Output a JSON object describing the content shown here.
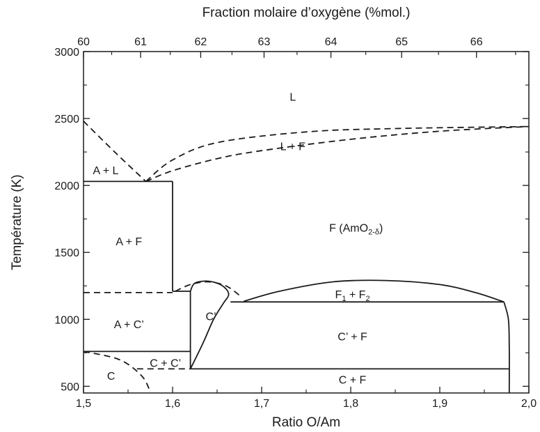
{
  "chart_data": {
    "type": "phase-diagram",
    "xlabel_bottom": "Ratio O/Am",
    "xlabel_top": "Fraction molaire d’oxygène (%mol.)",
    "ylabel": "Température (K)",
    "xlim": [
      1.5,
      2.0
    ],
    "ylim": [
      450,
      3000
    ],
    "x_ticks": [
      {
        "value": 1.5,
        "label": "1,5"
      },
      {
        "value": 1.6,
        "label": "1,6"
      },
      {
        "value": 1.7,
        "label": "1,7"
      },
      {
        "value": 1.8,
        "label": "1,8"
      },
      {
        "value": 1.9,
        "label": "1,9"
      },
      {
        "value": 2.0,
        "label": "2,0"
      }
    ],
    "x_minor_ticks": [
      1.55,
      1.65,
      1.75,
      1.85,
      1.95
    ],
    "top_ticks": [
      {
        "percent": 60,
        "label": "60"
      },
      {
        "percent": 61,
        "label": "61"
      },
      {
        "percent": 62,
        "label": "62"
      },
      {
        "percent": 63,
        "label": "63"
      },
      {
        "percent": 64,
        "label": "64"
      },
      {
        "percent": 65,
        "label": "65"
      },
      {
        "percent": 66,
        "label": "66"
      }
    ],
    "y_ticks": [
      {
        "value": 500,
        "label": "500"
      },
      {
        "value": 1000,
        "label": "1000"
      },
      {
        "value": 1500,
        "label": "1500"
      },
      {
        "value": 2000,
        "label": "2000"
      },
      {
        "value": 2500,
        "label": "2500"
      },
      {
        "value": 3000,
        "label": "3000"
      }
    ],
    "y_minor_ticks": [
      750,
      1250,
      1750,
      2250,
      2750
    ],
    "regions": [
      {
        "name": "region-L",
        "text": "L",
        "x": 1.735,
        "y": 2660
      },
      {
        "name": "region-L-F",
        "text": "L + F",
        "x": 1.735,
        "y": 2290
      },
      {
        "name": "region-A-L",
        "text": "A + L",
        "x": 1.525,
        "y": 2110
      },
      {
        "name": "region-A-F",
        "text": "A + F",
        "x": 1.551,
        "y": 1580
      },
      {
        "name": "region-F",
        "text": "F (AmO",
        "sub": "2-δ",
        "tail": ")",
        "x": 1.806,
        "y": 1680
      },
      {
        "name": "region-A-C-prime",
        "text": "A + C’",
        "x": 1.551,
        "y": 960
      },
      {
        "name": "region-C-prime",
        "text": "C’",
        "x": 1.643,
        "y": 1020
      },
      {
        "name": "region-F1-F2",
        "text": "F",
        "sub": "1",
        "tail": " + F",
        "sub2": "2",
        "x": 1.802,
        "y": 1185
      },
      {
        "name": "region-C-prime-F",
        "text": "C’ + F",
        "x": 1.802,
        "y": 870
      },
      {
        "name": "region-C-C-prime",
        "text": "C + C’",
        "x": 1.592,
        "y": 670
      },
      {
        "name": "region-C",
        "text": "C",
        "x": 1.531,
        "y": 575
      },
      {
        "name": "region-C-F",
        "text": "C + F",
        "x": 1.802,
        "y": 545
      }
    ],
    "boundaries": [
      {
        "name": "liquidus-left",
        "style": "dashed",
        "points": [
          [
            1.5,
            2480
          ],
          [
            1.535,
            2250
          ],
          [
            1.57,
            2030
          ]
        ]
      },
      {
        "name": "liquidus-right",
        "style": "dashed",
        "points": [
          [
            1.57,
            2030
          ],
          [
            1.6,
            2190
          ],
          [
            1.65,
            2320
          ],
          [
            1.75,
            2400
          ],
          [
            1.85,
            2425
          ],
          [
            2.0,
            2440
          ]
        ]
      },
      {
        "name": "solidus-f",
        "style": "dashed",
        "points": [
          [
            1.57,
            2030
          ],
          [
            1.6,
            2110
          ],
          [
            1.65,
            2200
          ],
          [
            1.7,
            2260
          ],
          [
            1.8,
            2345
          ],
          [
            1.9,
            2405
          ],
          [
            2.0,
            2440
          ]
        ]
      },
      {
        "name": "eutectic-line",
        "style": "solid",
        "points": [
          [
            1.5,
            2030
          ],
          [
            1.6,
            2030
          ]
        ]
      },
      {
        "name": "a-f-boundary",
        "style": "solid",
        "points": [
          [
            1.6,
            2030
          ],
          [
            1.6,
            1210
          ]
        ]
      },
      {
        "name": "dashed-1200",
        "style": "dashed",
        "points": [
          [
            1.5,
            1200
          ],
          [
            1.6,
            1200
          ]
        ]
      },
      {
        "name": "solid-1200",
        "style": "solid",
        "points": [
          [
            1.6,
            1210
          ],
          [
            1.62,
            1210
          ]
        ]
      },
      {
        "name": "c-prime-dome-dashed",
        "style": "dashed",
        "points": [
          [
            1.603,
            1210
          ],
          [
            1.62,
            1260
          ],
          [
            1.64,
            1280
          ],
          [
            1.66,
            1250
          ],
          [
            1.675,
            1180
          ]
        ]
      },
      {
        "name": "c-prime-left",
        "style": "solid",
        "points": [
          [
            1.62,
            1210
          ],
          [
            1.62,
            630
          ]
        ]
      },
      {
        "name": "c-prime-arc",
        "style": "solid",
        "points": [
          [
            1.62,
            630
          ],
          [
            1.634,
            820
          ],
          [
            1.646,
            1000
          ],
          [
            1.657,
            1120
          ],
          [
            1.663,
            1190
          ],
          [
            1.655,
            1255
          ],
          [
            1.64,
            1285
          ],
          [
            1.625,
            1270
          ],
          [
            1.62,
            1210
          ]
        ]
      },
      {
        "name": "line-760",
        "style": "solid",
        "points": [
          [
            1.5,
            760
          ],
          [
            1.62,
            760
          ]
        ]
      },
      {
        "name": "line-1130",
        "style": "solid",
        "points": [
          [
            1.665,
            1130
          ],
          [
            1.972,
            1130
          ]
        ]
      },
      {
        "name": "f1-f2-dome",
        "style": "solid",
        "points": [
          [
            1.68,
            1135
          ],
          [
            1.72,
            1210
          ],
          [
            1.78,
            1280
          ],
          [
            1.84,
            1290
          ],
          [
            1.9,
            1260
          ],
          [
            1.94,
            1200
          ],
          [
            1.972,
            1130
          ]
        ]
      },
      {
        "name": "right-boundary",
        "style": "solid",
        "points": [
          [
            1.972,
            1130
          ],
          [
            1.977,
            1000
          ],
          [
            1.978,
            800
          ],
          [
            1.978,
            450
          ]
        ]
      },
      {
        "name": "line-630",
        "style": "solid",
        "points": [
          [
            1.62,
            630
          ],
          [
            1.978,
            630
          ]
        ]
      },
      {
        "name": "c-left-dashed",
        "style": "dashed",
        "points": [
          [
            1.5,
            760
          ],
          [
            1.54,
            700
          ],
          [
            1.565,
            580
          ],
          [
            1.575,
            460
          ]
        ]
      },
      {
        "name": "c-right-dashed",
        "style": "dashed",
        "points": [
          [
            1.56,
            630
          ],
          [
            1.62,
            630
          ]
        ]
      }
    ]
  }
}
